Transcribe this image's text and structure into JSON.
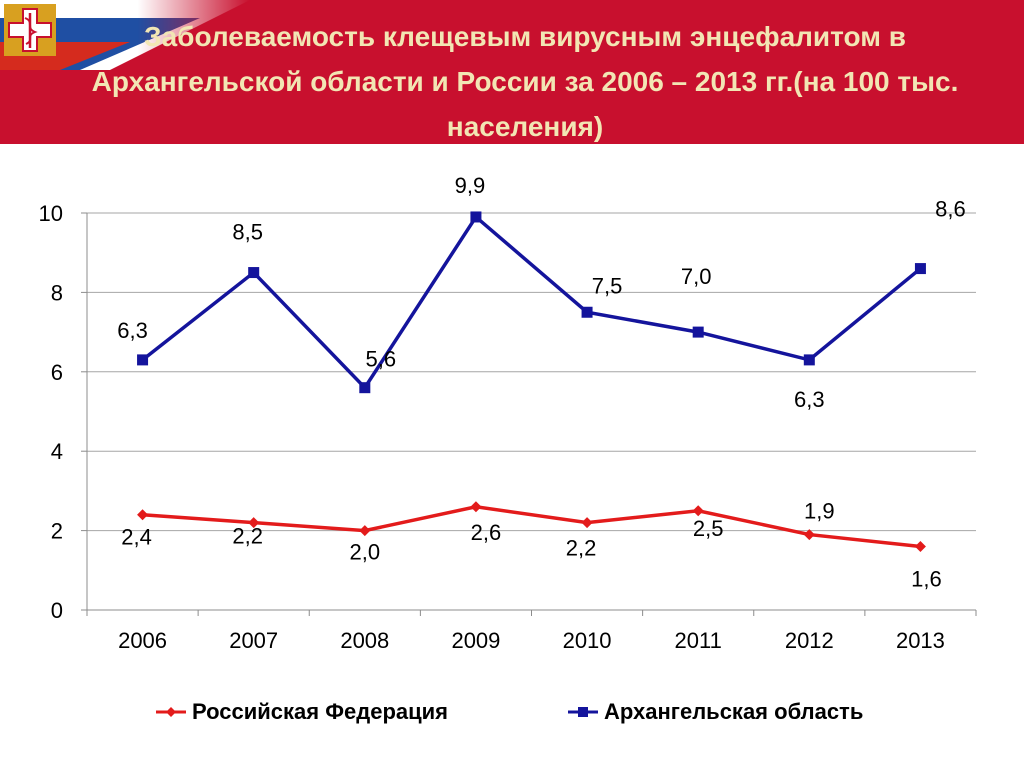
{
  "header": {
    "title": "Заболеваемость клещевым вирусным энцефалитом в Архангельской области и России за 2006 – 2013 гг.(на 100 тыс. населения)"
  },
  "colors": {
    "header_bg": "#c8102e",
    "title_text": "#f2e6b4",
    "flag_white": "#ffffff",
    "flag_blue": "#1f4fa3",
    "flag_red": "#d52b1e",
    "russia_series": "#e31b1b",
    "arkhangelsk_series": "#14149c",
    "gridline": "#a6a6a6"
  },
  "icons": {
    "logo": "medical-cross-caduceus-icon"
  },
  "chart_data": {
    "type": "line",
    "title": "",
    "xlabel": "",
    "ylabel": "",
    "categories": [
      "2006",
      "2007",
      "2008",
      "2009",
      "2010",
      "2011",
      "2012",
      "2013"
    ],
    "ylim": [
      0,
      10
    ],
    "yticks": [
      "0",
      "2",
      "4",
      "6",
      "8",
      "10"
    ],
    "grid": "horizontal",
    "legend_position": "bottom",
    "series": [
      {
        "name": "Российская Федерация",
        "marker": "diamond",
        "color": "#e31b1b",
        "values": [
          2.4,
          2.2,
          2.0,
          2.6,
          2.2,
          2.5,
          1.9,
          1.6
        ],
        "labels": [
          "2,4",
          "2,2",
          "2,0",
          "2,6",
          "2,2",
          "2,5",
          "1,9",
          "1,6"
        ]
      },
      {
        "name": "Архангельская область",
        "marker": "square",
        "color": "#14149c",
        "values": [
          6.3,
          8.5,
          5.6,
          9.9,
          7.5,
          7.0,
          6.3,
          8.6
        ],
        "labels": [
          "6,3",
          "8,5",
          "5,6",
          "9,9",
          "7,5",
          "7,0",
          "6,3",
          "8,6"
        ]
      }
    ]
  }
}
